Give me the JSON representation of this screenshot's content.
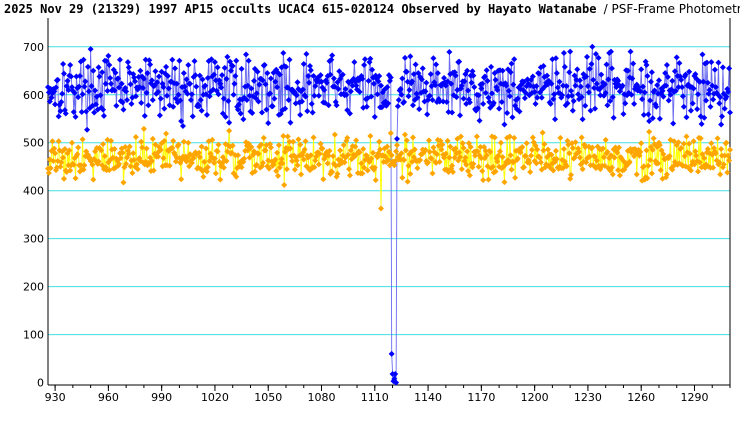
{
  "chart_data": {
    "type": "scatter",
    "title_bold": "2025 Nov 29 (21329) 1997 AP15 occults UCAC4 615-020124 Observed by Hayato Watanabe",
    "title_normal": "/ PSF-Frame Photometry /",
    "xlim": [
      926,
      1310
    ],
    "ylim": [
      -5,
      760
    ],
    "x_ticks": [
      930,
      960,
      990,
      1020,
      1050,
      1080,
      1110,
      1140,
      1170,
      1200,
      1230,
      1260,
      1290
    ],
    "y_ticks": [
      0,
      100,
      200,
      300,
      400,
      500,
      600,
      700
    ],
    "grid": "horizontal",
    "colors": {
      "gridline": "#40e0e0",
      "target_series": "#0000ff",
      "target_line": "#6b6bf0",
      "comparison_series": "#ffa500",
      "comparison_line": "#ffff00",
      "axis": "#000000"
    },
    "series": [
      {
        "role": "target",
        "marker": "diamond",
        "noise_model": {
          "x_start": 926,
          "x_end": 1310,
          "step": 0.5,
          "mean": 615,
          "spread": 60,
          "seed": 17
        },
        "event_points": [
          {
            "x": 1119.5,
            "y": 60
          },
          {
            "x": 1120.0,
            "y": 18
          },
          {
            "x": 1120.5,
            "y": 3
          },
          {
            "x": 1121.0,
            "y": 8
          },
          {
            "x": 1121.5,
            "y": 18
          },
          {
            "x": 1122.0,
            "y": 0
          },
          {
            "x": 1122.5,
            "y": 508
          }
        ],
        "event_range": [
          1119.5,
          1122.5
        ]
      },
      {
        "role": "comparison",
        "marker": "diamond",
        "noise_model": {
          "x_start": 926,
          "x_end": 1310,
          "step": 0.5,
          "mean": 470,
          "spread": 40,
          "seed": 91
        },
        "notable_points": [
          {
            "x": 1113.5,
            "y": 363
          },
          {
            "x": 1119.0,
            "y": 520
          }
        ]
      }
    ]
  }
}
